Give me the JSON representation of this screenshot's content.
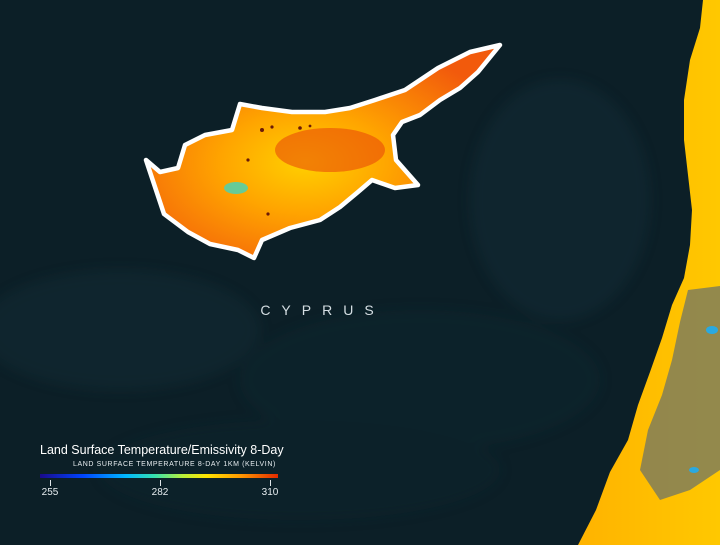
{
  "map": {
    "region_label": "CYPRUS",
    "colors": {
      "sea": "#0c1f27",
      "land_hot": "#f06a10",
      "land_warm": "#ffb000",
      "outline": "#ffffff"
    }
  },
  "legend": {
    "title": "Land Surface Temperature/Emissivity 8-Day",
    "subtitle": "Land Surface Temperature 8-Day 1km (Kelvin)",
    "ticks": [
      "255",
      "282",
      "310"
    ]
  }
}
